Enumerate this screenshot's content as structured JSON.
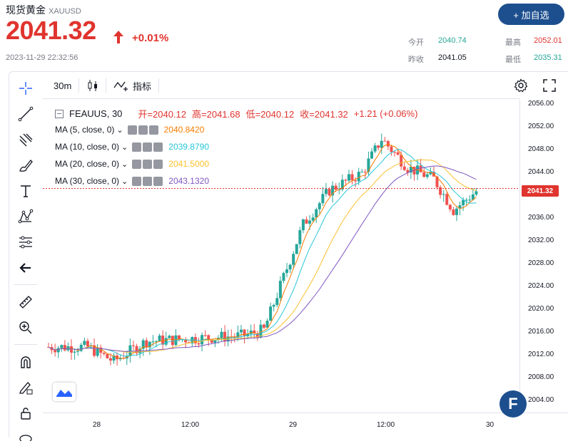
{
  "header": {
    "title": "现货黄金",
    "symbol": "XAUUSD",
    "price": "2041.32",
    "change": "+0.01%",
    "datetime": "2023-11-29 22:32:56",
    "add_button": "+ 加自选",
    "stats": {
      "open_label": "今开",
      "open_value": "2040.74",
      "high_label": "最高",
      "high_value": "2052.01",
      "prev_label": "昨收",
      "prev_value": "2041.05",
      "low_label": "最低",
      "low_value": "2035.31"
    }
  },
  "toolbar": {
    "interval": "30m",
    "indicators_label": "指标"
  },
  "legend": {
    "symbol": "FEAUUS, 30",
    "open": "开=2040.12",
    "high": "高=2041.68",
    "low": "低=2040.12",
    "close": "收=2041.32",
    "change": "+1.21 (+0.06%)",
    "ma": [
      {
        "label": "MA (5, close, 0)",
        "value": "2040.8420",
        "color": "#f57c00"
      },
      {
        "label": "MA (10, close, 0)",
        "value": "2039.8790",
        "color": "#26c6da"
      },
      {
        "label": "MA (20, close, 0)",
        "value": "2041.5000",
        "color": "#fbc02d"
      },
      {
        "label": "MA (30, close, 0)",
        "value": "2043.1320",
        "color": "#7e57c2"
      }
    ]
  },
  "colors": {
    "up": "#26a69a",
    "down": "#ef5350",
    "accent": "#1d4f8e"
  },
  "chart_data": {
    "type": "candlestick",
    "y_ticks": [
      "2056.00",
      "2052.00",
      "2048.00",
      "2044.00",
      "2040.00",
      "2036.00",
      "2032.00",
      "2028.00",
      "2024.00",
      "2020.00",
      "2016.00",
      "2012.00",
      "2008.00",
      "2004.00"
    ],
    "x_ticks": [
      "28",
      "12:00",
      "29",
      "12:00",
      "30"
    ],
    "last_price_label": "2041.32",
    "ylim": [
      2002,
      2057
    ]
  }
}
